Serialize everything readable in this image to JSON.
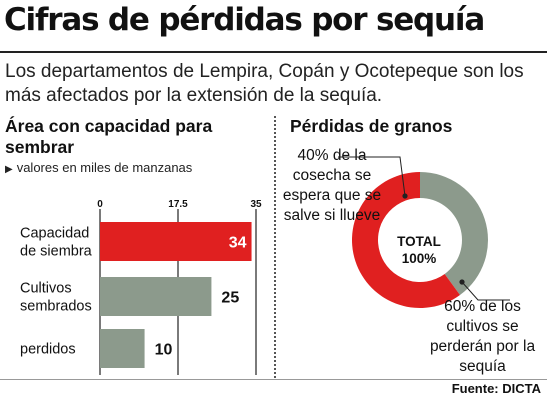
{
  "header": {
    "title": "Cifras de pérdidas por sequía",
    "subtitle": "Los departamentos de Lempira, Copán y Ocotepeque son los más afectados por la extensión de la sequía."
  },
  "bar_panel": {
    "title": "Área con capacidad para sembrar",
    "units": "valores en miles de manzanas",
    "units_marker": "▶"
  },
  "donut_panel": {
    "title": "Pérdidas de granos",
    "center_line1": "TOTAL",
    "center_line2": "100%",
    "label_saved": "40% de la cosecha se espera que se salve si llueve",
    "label_lost": "60% de los cultivos se perderán por la sequía"
  },
  "source": "Fuente: DICTA",
  "colors": {
    "red": "#e02020",
    "gray": "#8c9a8c"
  },
  "chart_data": [
    {
      "type": "bar",
      "orientation": "horizontal",
      "title": "Área con capacidad para sembrar",
      "units": "valores en miles de manzanas",
      "categories": [
        "Capacidad de siembra",
        "Cultivos sembrados",
        "perdidos"
      ],
      "category_lines": [
        [
          "Capacidad",
          "de siembra"
        ],
        [
          "Cultivos",
          "sembrados"
        ],
        [
          "perdidos"
        ]
      ],
      "values": [
        34,
        25,
        10
      ],
      "value_labels": [
        "34",
        "25",
        "10"
      ],
      "bar_colors": [
        "#e02020",
        "#8c9a8c",
        "#8c9a8c"
      ],
      "xlim": [
        0,
        35
      ],
      "xticks": [
        0,
        17.5,
        35
      ],
      "xtick_labels": [
        "0",
        "17.5",
        "35"
      ],
      "grid": true
    },
    {
      "type": "pie",
      "variant": "donut",
      "title": "Pérdidas de granos",
      "labels": [
        "de la cosecha se espera que se salve si llueve",
        "de los cultivos se perderán por la sequía"
      ],
      "values": [
        40,
        60
      ],
      "colors": [
        "#8c9a8c",
        "#e02020"
      ]
    }
  ]
}
